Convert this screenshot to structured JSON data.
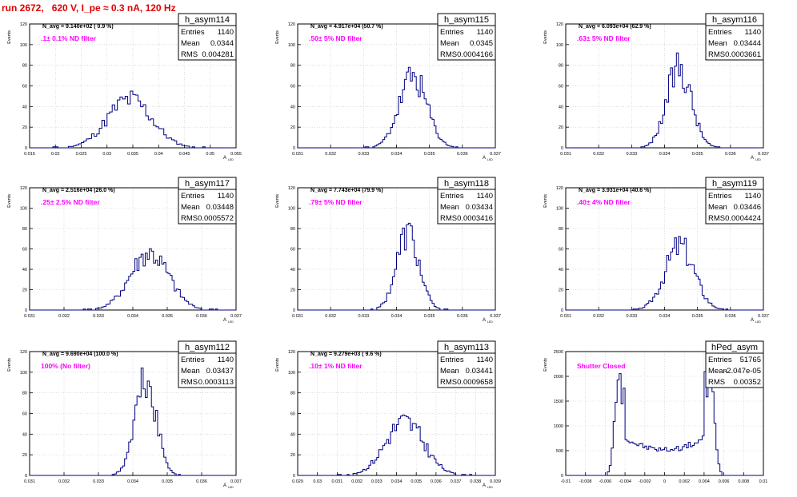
{
  "run_title": "run 2672,   620 V, I_pe ≈ 0.3 nA, 120 Hz",
  "colors": {
    "hist": "#00007f",
    "filter_label": "#ff00ff",
    "title": "#e00000",
    "grid": "#c8c8c8"
  },
  "stat_labels": {
    "entries": "Entries",
    "mean": "Mean",
    "rms": "RMS"
  },
  "chart_data": [
    {
      "type": "histogram",
      "name": "h_asym114",
      "navg": "N_avg = 9.140e+02 ( 0.9 %)",
      "filter": ".1± 0.1% ND filter",
      "entries": "1140",
      "mean": "0.0344",
      "rms": "0.004281",
      "ylabel": "Events",
      "xlabel": "A",
      "xlim": [
        0.015,
        0.055
      ],
      "ylim": [
        0,
        120
      ],
      "xticks": [
        0.015,
        0.02,
        0.025,
        0.03,
        0.035,
        0.04,
        0.045,
        0.05,
        0.055
      ],
      "yticks": [
        0,
        20,
        40,
        60,
        80,
        100,
        120
      ],
      "grid": true,
      "xmean": 0.0344,
      "sigma": 0.0043,
      "peak": 48,
      "bins": 80,
      "seed": 11
    },
    {
      "type": "histogram",
      "name": "h_asym115",
      "navg": "N_avg = 4.917e+04 (50.7 %)",
      "filter": ".50± 5% ND filter",
      "entries": "1140",
      "mean": "0.0345",
      "rms": "0.0004166",
      "ylabel": "Events",
      "xlabel": "A",
      "xlim": [
        0.031,
        0.037
      ],
      "ylim": [
        0,
        120
      ],
      "xticks": [
        0.031,
        0.032,
        0.033,
        0.034,
        0.035,
        0.036,
        0.037
      ],
      "yticks": [
        0,
        20,
        40,
        60,
        80,
        100,
        120
      ],
      "grid": true,
      "xmean": 0.0345,
      "sigma": 0.00042,
      "peak": 70,
      "bins": 100,
      "seed": 23
    },
    {
      "type": "histogram",
      "name": "h_asym116",
      "navg": "N_avg = 6.093e+04 (62.9 %)",
      "filter": ".63± 5% ND filter",
      "entries": "1140",
      "mean": "0.03444",
      "rms": "0.0003661",
      "ylabel": "Events",
      "xlabel": "A",
      "xlim": [
        0.031,
        0.037
      ],
      "ylim": [
        0,
        120
      ],
      "xticks": [
        0.031,
        0.032,
        0.033,
        0.034,
        0.035,
        0.036,
        0.037
      ],
      "yticks": [
        0,
        20,
        40,
        60,
        80,
        100,
        120
      ],
      "grid": true,
      "xmean": 0.03444,
      "sigma": 0.00037,
      "peak": 80,
      "bins": 100,
      "seed": 37
    },
    {
      "type": "histogram",
      "name": "h_asym117",
      "navg": "N_avg = 2.516e+04 (26.0 %)",
      "filter": ".25± 2.5% ND filter",
      "entries": "1140",
      "mean": "0.03448",
      "rms": "0.0005572",
      "ylabel": "Events",
      "xlabel": "A",
      "xlim": [
        0.031,
        0.037
      ],
      "ylim": [
        0,
        120
      ],
      "xticks": [
        0.031,
        0.032,
        0.033,
        0.034,
        0.035,
        0.036,
        0.037
      ],
      "yticks": [
        0,
        20,
        40,
        60,
        80,
        100,
        120
      ],
      "grid": true,
      "xmean": 0.03448,
      "sigma": 0.00056,
      "peak": 56,
      "bins": 100,
      "seed": 41
    },
    {
      "type": "histogram",
      "name": "h_asym118",
      "navg": "N_avg = 7.743e+04 (79.9 %)",
      "filter": ".79± 5% ND filter",
      "entries": "1140",
      "mean": "0.03434",
      "rms": "0.0003416",
      "ylabel": "Events",
      "xlabel": "A",
      "xlim": [
        0.031,
        0.037
      ],
      "ylim": [
        0,
        120
      ],
      "xticks": [
        0.031,
        0.032,
        0.033,
        0.034,
        0.035,
        0.036,
        0.037
      ],
      "yticks": [
        0,
        20,
        40,
        60,
        80,
        100,
        120
      ],
      "grid": true,
      "xmean": 0.03434,
      "sigma": 0.00034,
      "peak": 77,
      "bins": 100,
      "seed": 53
    },
    {
      "type": "histogram",
      "name": "h_asym119",
      "navg": "N_avg = 3.931e+04 (40.6 %)",
      "filter": ".40± 4% ND filter",
      "entries": "1140",
      "mean": "0.03446",
      "rms": "0.0004424",
      "ylabel": "Events",
      "xlabel": "A",
      "xlim": [
        0.031,
        0.037
      ],
      "ylim": [
        0,
        120
      ],
      "xticks": [
        0.031,
        0.032,
        0.033,
        0.034,
        0.035,
        0.036,
        0.037
      ],
      "yticks": [
        0,
        20,
        40,
        60,
        80,
        100,
        120
      ],
      "grid": true,
      "xmean": 0.03446,
      "sigma": 0.00044,
      "peak": 65,
      "bins": 100,
      "seed": 67
    },
    {
      "type": "histogram",
      "name": "h_asym112",
      "navg": "N_avg = 9.690e+04 (100.0 %)",
      "filter": "100% (No filter)",
      "entries": "1140",
      "mean": "0.03437",
      "rms": "0.0003113",
      "ylabel": "Events",
      "xlabel": "A",
      "xlim": [
        0.031,
        0.037
      ],
      "ylim": [
        0,
        120
      ],
      "xticks": [
        0.031,
        0.032,
        0.033,
        0.034,
        0.035,
        0.036,
        0.037
      ],
      "yticks": [
        0,
        20,
        40,
        60,
        80,
        100,
        120
      ],
      "grid": true,
      "xmean": 0.03437,
      "sigma": 0.00031,
      "peak": 93,
      "bins": 100,
      "seed": 71
    },
    {
      "type": "histogram",
      "name": "h_asym113",
      "navg": "N_avg = 9.279e+03 ( 9.6 %)",
      "filter": ".10± 1% ND filter",
      "entries": "1140",
      "mean": "0.03441",
      "rms": "0.0009658",
      "ylabel": "Events",
      "xlabel": "A",
      "xlim": [
        0.029,
        0.039
      ],
      "ylim": [
        0,
        120
      ],
      "xticks": [
        0.029,
        0.03,
        0.031,
        0.032,
        0.033,
        0.034,
        0.035,
        0.036,
        0.037,
        0.038,
        0.039
      ],
      "yticks": [
        0,
        20,
        40,
        60,
        80,
        100,
        120
      ],
      "grid": true,
      "xmean": 0.03441,
      "sigma": 0.00097,
      "peak": 53,
      "bins": 100,
      "seed": 83
    },
    {
      "type": "histogram",
      "name": "hPed_asym",
      "navg": "",
      "filter": "Shutter Closed",
      "entries": "51765",
      "mean": "-2.047e-05",
      "rms": "0.00352",
      "ylabel": "Events",
      "xlabel": "",
      "xlim": [
        -0.01,
        0.01
      ],
      "ylim": [
        0,
        2500
      ],
      "xticks": [
        -0.01,
        -0.008,
        -0.006,
        -0.004,
        -0.002,
        0,
        0.002,
        0.004,
        0.006,
        0.008,
        0.01
      ],
      "yticks": [
        0,
        500,
        1000,
        1500,
        2000,
        2500
      ],
      "grid": true,
      "bimodal": true,
      "peak": 2050,
      "bins": 100,
      "seed": 97
    }
  ]
}
